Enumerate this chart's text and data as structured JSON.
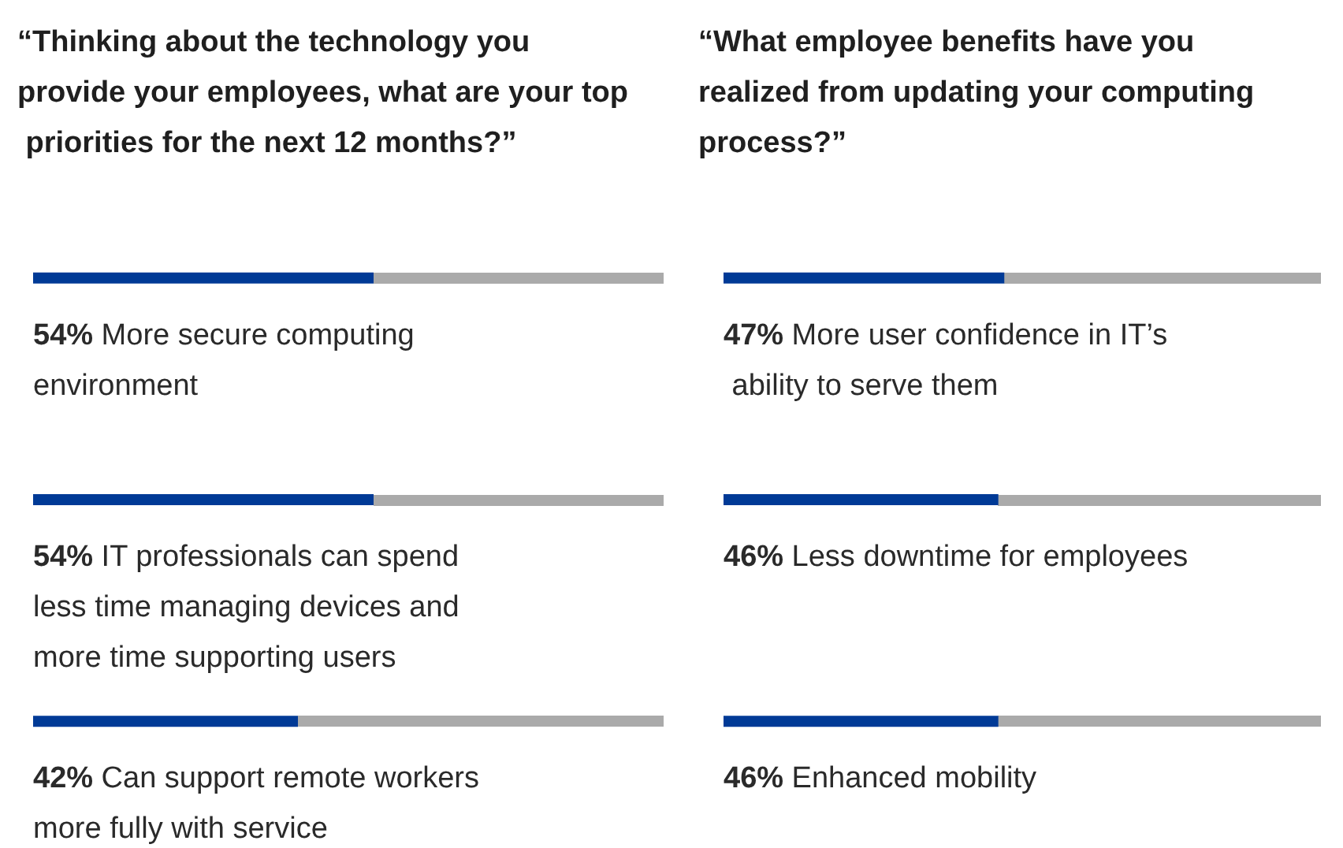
{
  "chart_data": [
    {
      "type": "bar",
      "orientation": "horizontal",
      "title": "“Thinking about the technology you provide your employees, what are your top priorities for the next 12 months?”",
      "categories": [
        "More secure computing environment",
        "IT professionals can spend less time managing devices and more time supporting users",
        "Can support remote workers more fully with service"
      ],
      "xlim": [
        0,
        100
      ],
      "tick_labels": "y",
      "series": [
        {
          "color": "#003a96",
          "values": [
            54,
            54,
            42
          ],
          "value_labels": [
            "54%",
            "54%",
            "42%"
          ]
        }
      ]
    },
    {
      "type": "bar",
      "orientation": "horizontal",
      "title": "“What employee benefits have you realized from updating your computing process?”",
      "categories": [
        "More user confidence in IT’s ability to serve them",
        "Less downtime for employees",
        "Enhanced mobility"
      ],
      "xlim": [
        0,
        100
      ],
      "tick_labels": "y",
      "series": [
        {
          "color": "#003a96",
          "values": [
            47,
            46,
            46
          ],
          "value_labels": [
            "47%",
            "46%",
            "46%"
          ]
        }
      ]
    }
  ]
}
